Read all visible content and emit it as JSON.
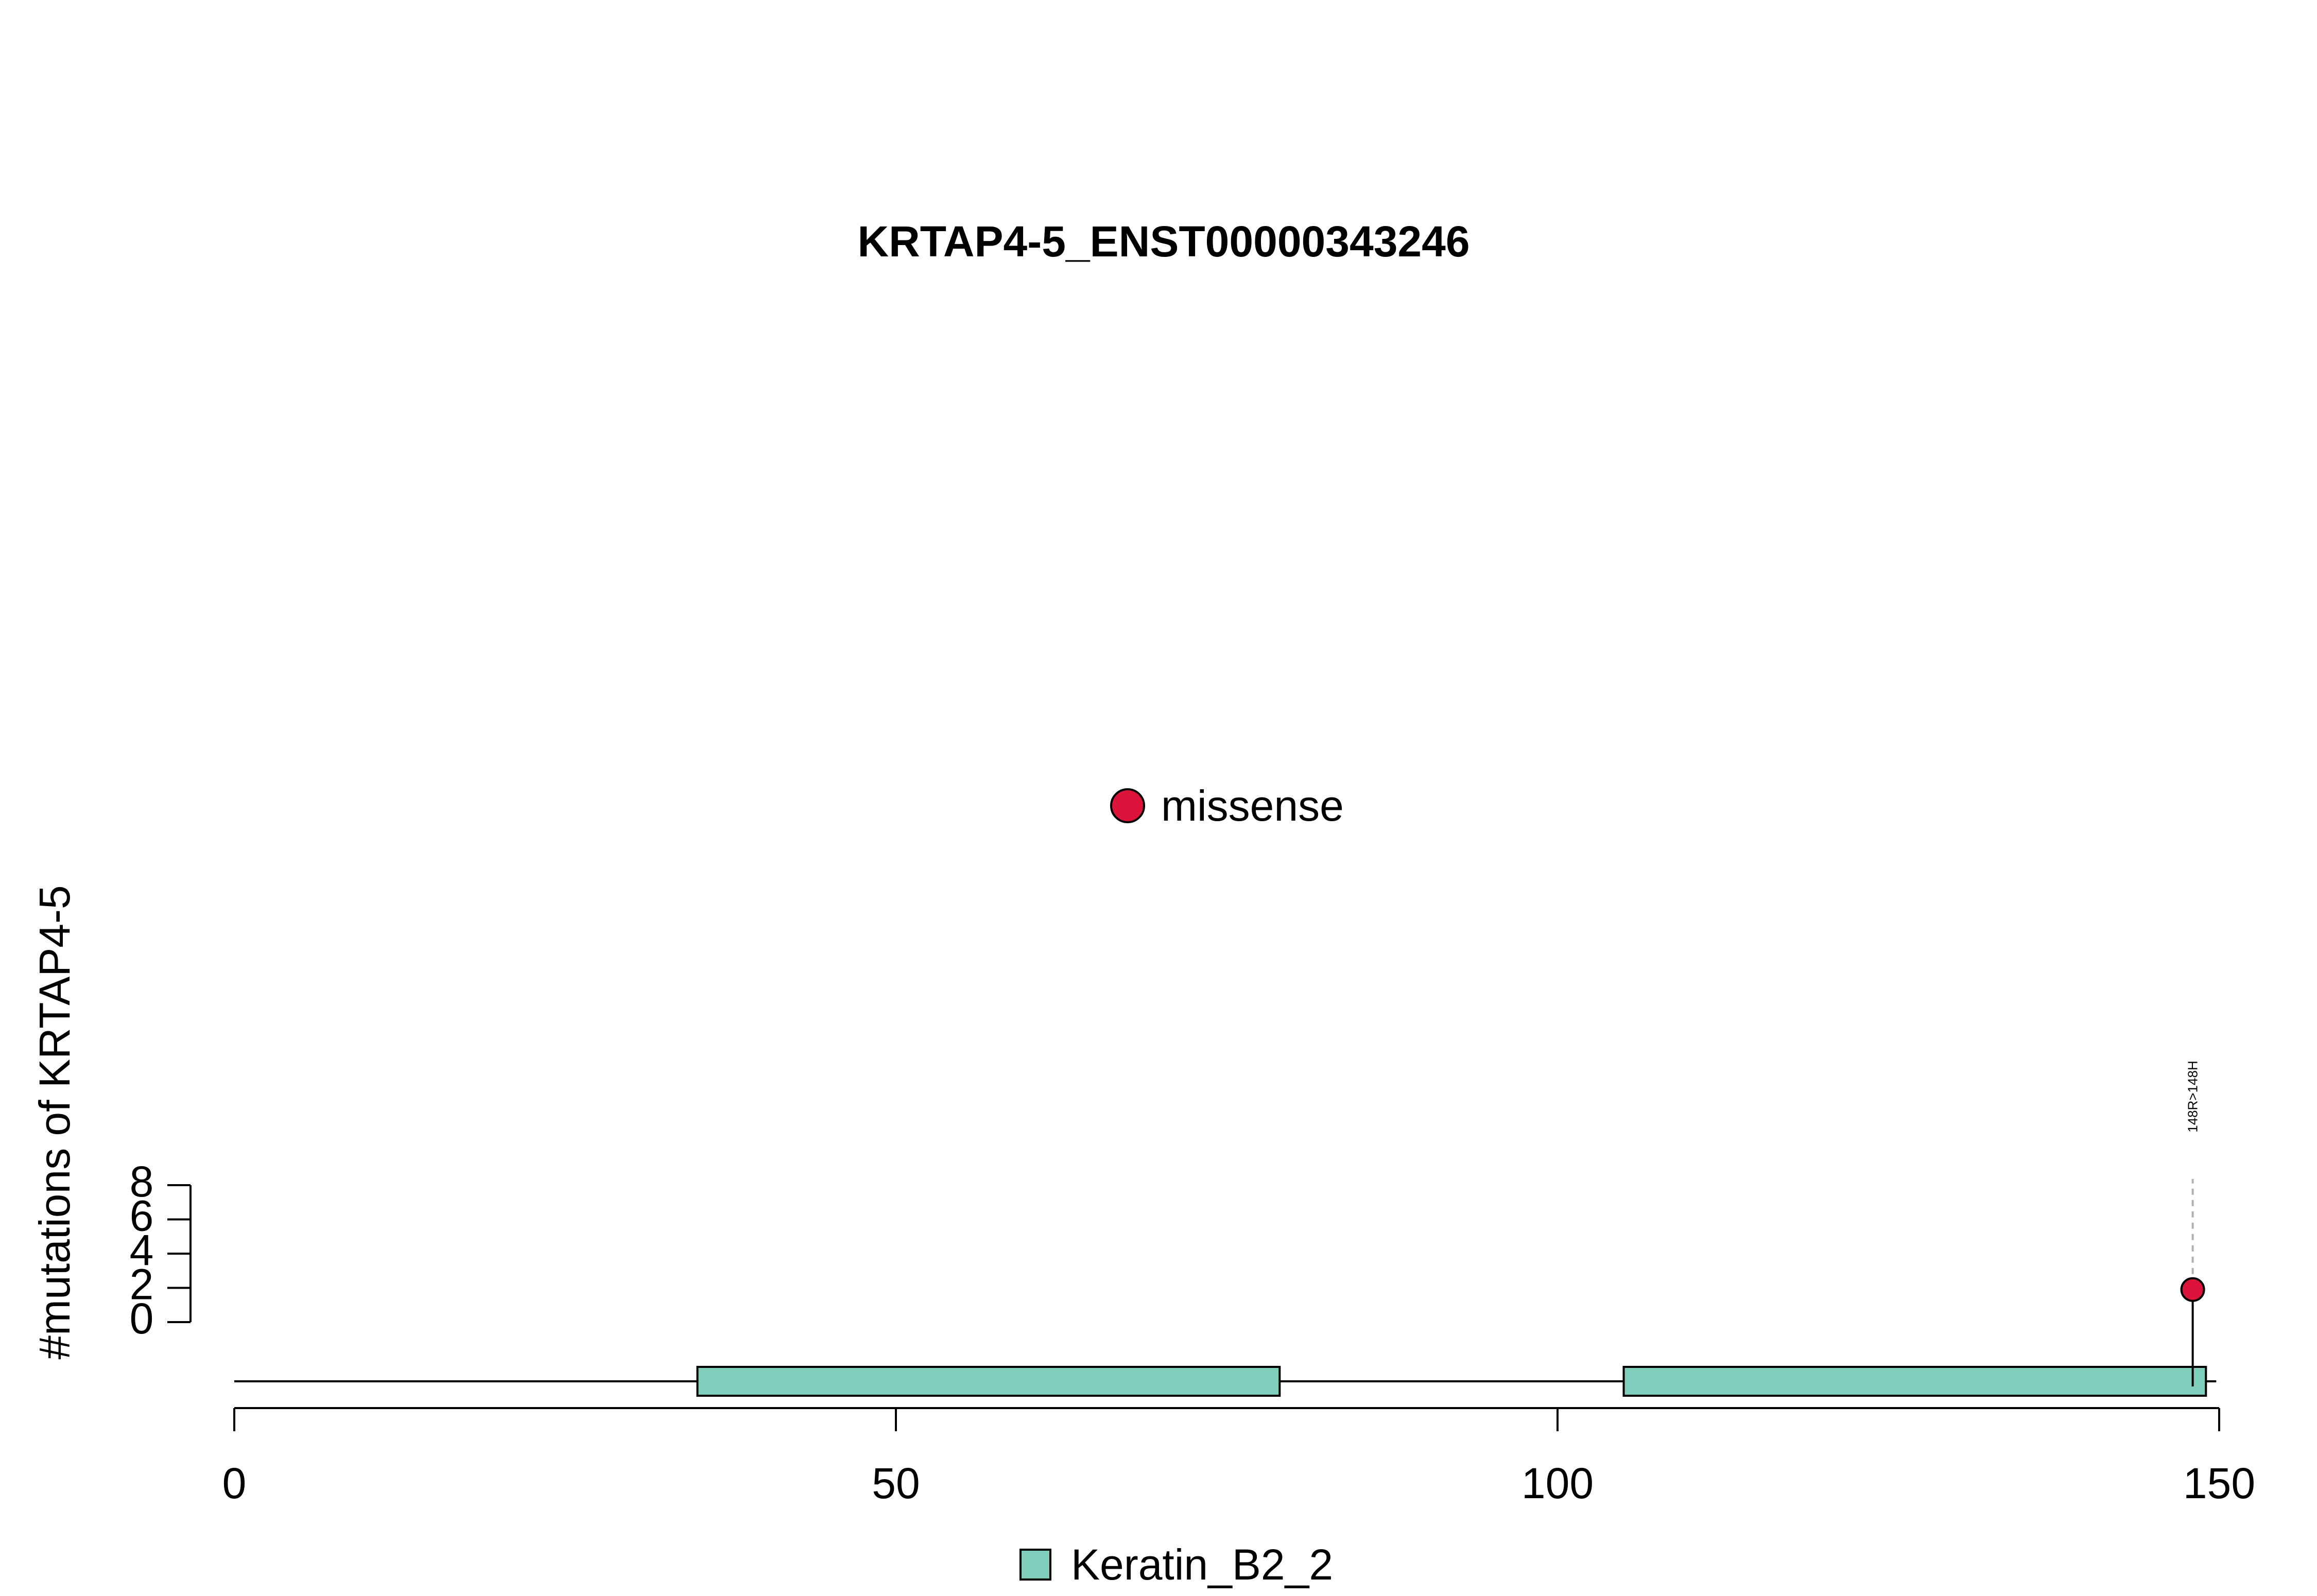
{
  "chart_data": {
    "type": "lollipop",
    "title": "KRTAP4-5_ENST00000343246",
    "ylabel": "#mutations of KRTAP4-5",
    "xlabel": "",
    "xlim": [
      0,
      150
    ],
    "x_ticks": [
      0,
      50,
      100,
      150
    ],
    "ylim": [
      0,
      8
    ],
    "y_ticks": [
      0,
      2,
      4,
      6,
      8
    ],
    "protein_length": 149,
    "domains": [
      {
        "name": "Keratin_B2_2",
        "start": 35,
        "end": 79
      },
      {
        "name": "Keratin_B2_2",
        "start": 105,
        "end": 149
      }
    ],
    "mutations": [
      {
        "position": 148,
        "count": 1,
        "type": "missense",
        "label": "148R>148H"
      }
    ],
    "mutation_legend": [
      {
        "label": "missense",
        "color": "#DC143C"
      }
    ],
    "domain_legend": [
      {
        "label": "Keratin_B2_2",
        "color": "#7FCDBB"
      }
    ]
  }
}
